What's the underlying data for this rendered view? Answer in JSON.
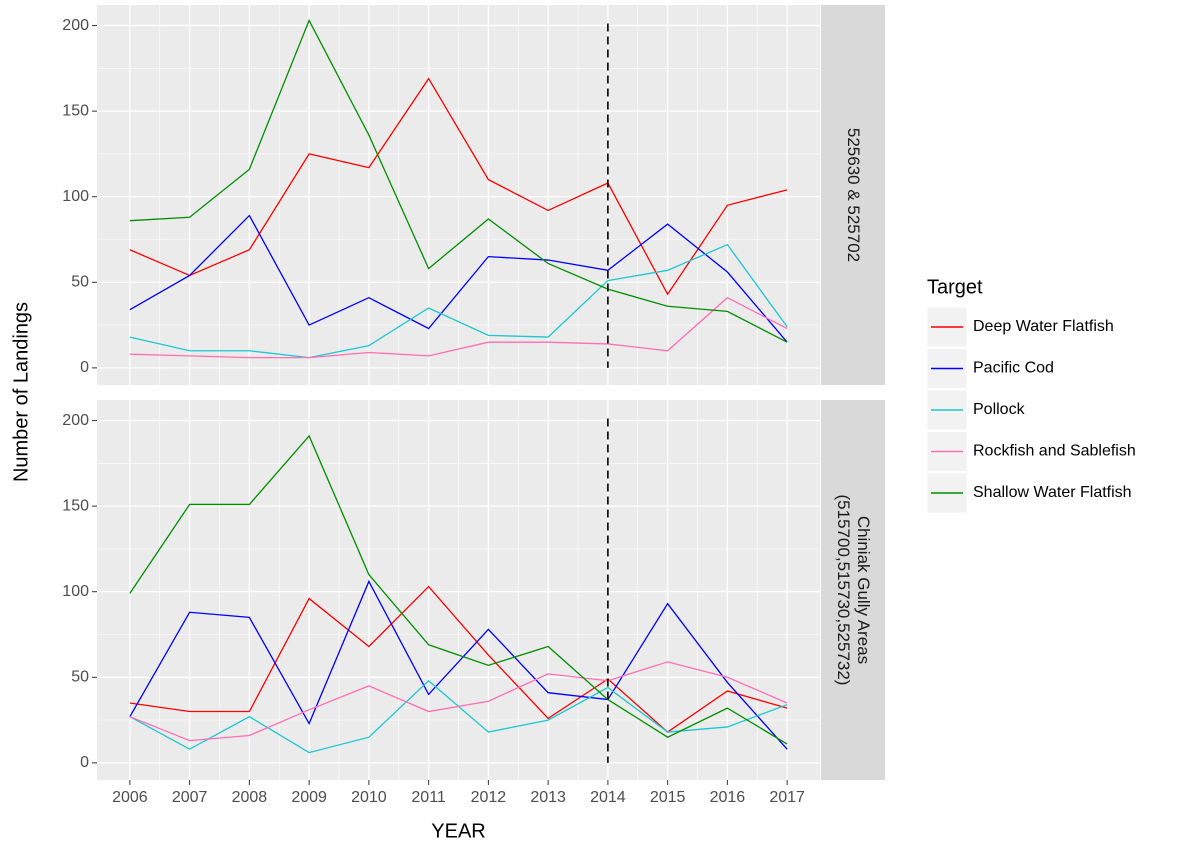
{
  "chart_data": [
    {
      "type": "line",
      "strip": [
        "525630 & 525702"
      ],
      "ylabel": "Number of Landings",
      "legend_title": "Target",
      "x": [
        2006,
        2007,
        2008,
        2009,
        2010,
        2011,
        2012,
        2013,
        2014,
        2015,
        2016,
        2017
      ],
      "xlim": [
        2005.45,
        2017.55
      ],
      "xticks": [
        2006,
        2007,
        2008,
        2009,
        2010,
        2011,
        2012,
        2013,
        2014,
        2015,
        2016,
        2017
      ],
      "ylim": [
        -10,
        212
      ],
      "yticks": [
        0,
        50,
        100,
        150,
        200
      ],
      "vline": 2014,
      "grid": true,
      "series": [
        {
          "name": "Deep Water Flatfish",
          "color": "#ff0000",
          "values": [
            69,
            54,
            69,
            125,
            117,
            169,
            110,
            92,
            108,
            43,
            95,
            104
          ]
        },
        {
          "name": "Pacific Cod",
          "color": "#0000ff",
          "values": [
            34,
            54,
            89,
            25,
            41,
            23,
            65,
            63,
            57,
            84,
            56,
            15
          ]
        },
        {
          "name": "Pollock",
          "color": "#19c8d2",
          "values": [
            18,
            10,
            10,
            6,
            13,
            35,
            19,
            18,
            51,
            57,
            72,
            24
          ]
        },
        {
          "name": "Rockfish and Sablefish",
          "color": "#ff6eb4",
          "values": [
            8,
            7,
            6,
            6,
            9,
            7,
            15,
            15,
            14,
            10,
            41,
            23
          ]
        },
        {
          "name": "Shallow Water Flatfish",
          "color": "#008f00",
          "values": [
            86,
            88,
            116,
            203,
            136,
            58,
            87,
            61,
            46,
            36,
            33,
            15
          ]
        }
      ]
    },
    {
      "type": "line",
      "strip": [
        "Chiniak Gully Areas",
        "(515700,515730,525732)"
      ],
      "xlabel": "YEAR",
      "x": [
        2006,
        2007,
        2008,
        2009,
        2010,
        2011,
        2012,
        2013,
        2014,
        2015,
        2016,
        2017
      ],
      "xlim": [
        2005.45,
        2017.55
      ],
      "xticks": [
        2006,
        2007,
        2008,
        2009,
        2010,
        2011,
        2012,
        2013,
        2014,
        2015,
        2016,
        2017
      ],
      "ylim": [
        -10,
        212
      ],
      "yticks": [
        0,
        50,
        100,
        150,
        200
      ],
      "vline": 2014,
      "grid": true,
      "series": [
        {
          "name": "Deep Water Flatfish",
          "color": "#ff0000",
          "values": [
            35,
            30,
            30,
            96,
            68,
            103,
            63,
            26,
            49,
            18,
            42,
            32
          ]
        },
        {
          "name": "Pacific Cod",
          "color": "#0000ff",
          "values": [
            27,
            88,
            85,
            23,
            106,
            40,
            78,
            41,
            37,
            93,
            47,
            8
          ]
        },
        {
          "name": "Pollock",
          "color": "#19c8d2",
          "values": [
            27,
            8,
            27,
            6,
            15,
            48,
            18,
            25,
            44,
            18,
            21,
            34
          ]
        },
        {
          "name": "Rockfish and Sablefish",
          "color": "#ff6eb4",
          "values": [
            27,
            13,
            16,
            31,
            45,
            30,
            36,
            52,
            48,
            59,
            50,
            35
          ]
        },
        {
          "name": "Shallow Water Flatfish",
          "color": "#008f00",
          "values": [
            99,
            151,
            151,
            191,
            110,
            69,
            57,
            68,
            37,
            15,
            32,
            11
          ]
        }
      ]
    }
  ]
}
